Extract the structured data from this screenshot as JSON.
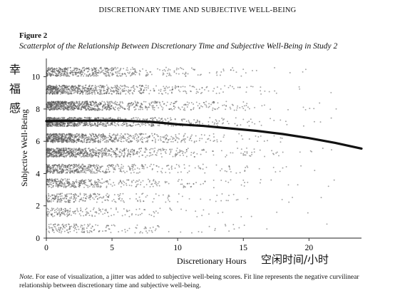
{
  "running_head": "DISCRETIONARY TIME AND SUBJECTIVE WELL-BEING",
  "figure_label": "Figure 2",
  "figure_title": "Scatterplot of the Relationship Between Discretionary Time and Subjective Well-Being in Study 2",
  "annotations": {
    "y_chinese": [
      "幸",
      "福",
      "感"
    ],
    "x_chinese": "空闲时间/小时"
  },
  "note": {
    "prefix": "Note.",
    "text": " For ease of visualization, a jitter was added to subjective well-being scores. Fit line represents the negative curvilinear relationship between discretionary time and subjective well-being."
  },
  "chart_data": {
    "type": "scatter",
    "xlabel": "Discretionary Hours",
    "ylabel": "Subjective Well-Being",
    "xlim": [
      0,
      24
    ],
    "ylim": [
      0,
      11
    ],
    "x_ticks": [
      0,
      5,
      10,
      15,
      20
    ],
    "y_ticks": [
      0,
      2,
      4,
      6,
      8,
      10
    ],
    "grid": false,
    "point_color": "#555555",
    "fit_line_color": "#111111",
    "scatter_bands": [
      {
        "y_center": 10.3,
        "density": 0.55
      },
      {
        "y_center": 9.2,
        "density": 0.75
      },
      {
        "y_center": 8.2,
        "density": 0.95
      },
      {
        "y_center": 7.2,
        "density": 1.0
      },
      {
        "y_center": 6.2,
        "density": 0.85
      },
      {
        "y_center": 5.3,
        "density": 0.8
      },
      {
        "y_center": 4.3,
        "density": 0.55
      },
      {
        "y_center": 3.4,
        "density": 0.4
      },
      {
        "y_center": 2.5,
        "density": 0.28
      },
      {
        "y_center": 1.6,
        "density": 0.2
      },
      {
        "y_center": 0.6,
        "density": 0.2
      }
    ],
    "fit_line": {
      "x": [
        0,
        2,
        4,
        6,
        8,
        10,
        12,
        14,
        16,
        18,
        20,
        22,
        24
      ],
      "y": [
        7.25,
        7.27,
        7.28,
        7.27,
        7.2,
        7.05,
        6.95,
        6.8,
        6.65,
        6.45,
        6.2,
        5.9,
        5.55
      ]
    }
  }
}
